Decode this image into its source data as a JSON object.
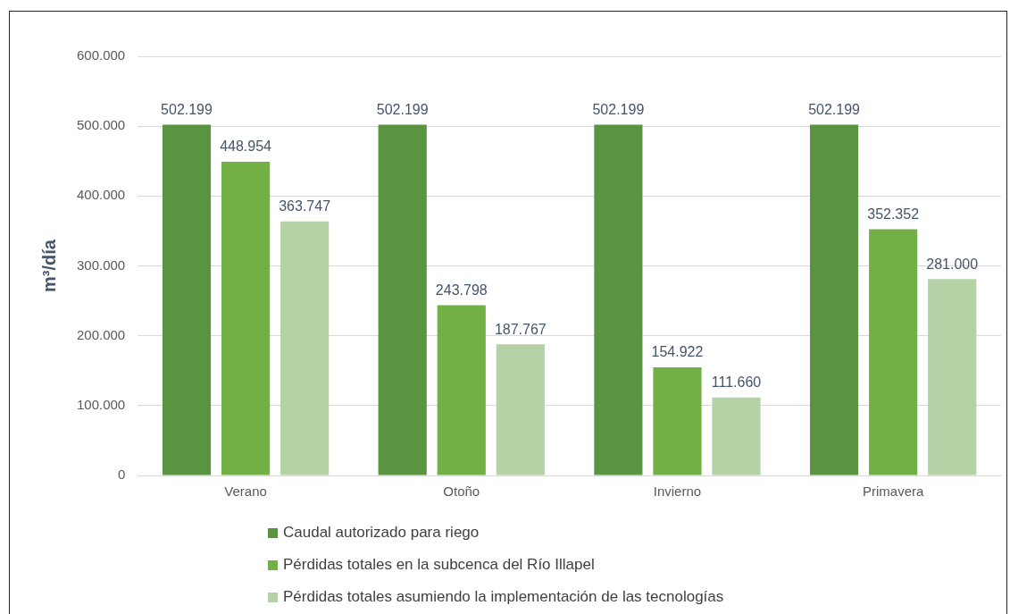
{
  "chart_data": {
    "type": "bar",
    "ylabel": "m³/día",
    "categories": [
      "Verano",
      "Otoño",
      "Invierno",
      "Primavera"
    ],
    "series": [
      {
        "name": "Caudal autorizado para riego",
        "color": "#5b9440",
        "values": [
          502199,
          502199,
          502199,
          502199
        ],
        "value_labels": [
          "502.199",
          "502.199",
          "502.199",
          "502.199"
        ]
      },
      {
        "name": "Pérdidas totales en la subcenca del Río Illapel",
        "color": "#72b045",
        "values": [
          448954,
          243798,
          154922,
          352352
        ],
        "value_labels": [
          "448.954",
          "243.798",
          "154.922",
          "352.352"
        ]
      },
      {
        "name": "Pérdidas totales asumiendo la implementación de las tecnologías",
        "color": "#b5d1a6",
        "values": [
          363747,
          187767,
          111660,
          281000
        ],
        "value_labels": [
          "363.747",
          "187.767",
          "111.660",
          "281.000"
        ]
      }
    ],
    "ylim": [
      0,
      600000
    ],
    "yticks": [
      0,
      {
        "value": 100000,
        "label": "100.000"
      },
      {
        "value": 200000,
        "label": "200.000"
      },
      {
        "value": 300000,
        "label": "300.000"
      },
      {
        "value": 400000,
        "label": "400.000"
      },
      {
        "value": 500000,
        "label": "500.000"
      },
      {
        "value": 600000,
        "label": "600.000"
      }
    ],
    "grid": "y",
    "legend": "bottom"
  }
}
